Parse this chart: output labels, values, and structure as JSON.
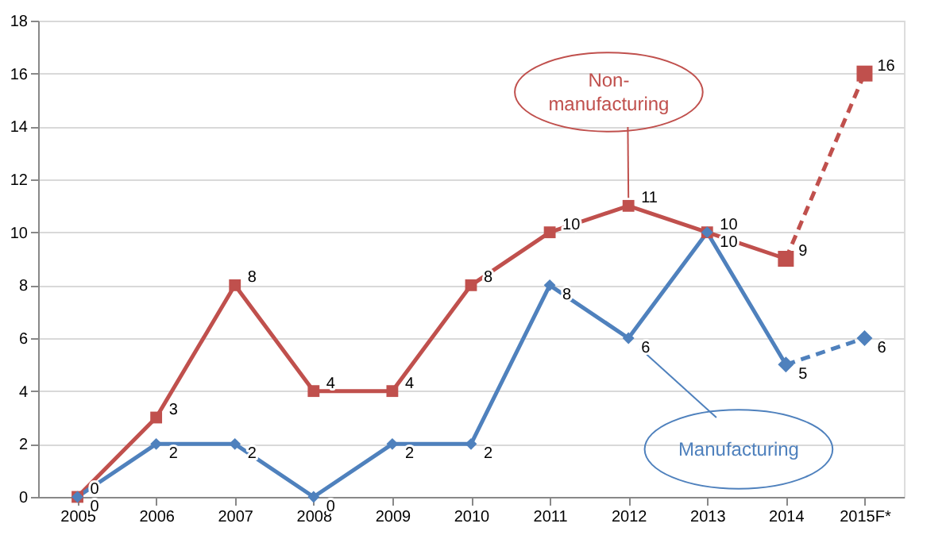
{
  "chart_data": {
    "type": "line",
    "categories": [
      "2005",
      "2006",
      "2007",
      "2008",
      "2009",
      "2010",
      "2011",
      "2012",
      "2013",
      "2014",
      "2015F*"
    ],
    "ylim": [
      0,
      18
    ],
    "yticks": [
      0,
      2,
      4,
      6,
      8,
      10,
      12,
      14,
      16,
      18
    ],
    "grid": "y",
    "series": [
      {
        "name": "Non-manufacturing",
        "color": "#c0504d",
        "marker": "square",
        "line_style": "solid",
        "values": [
          0,
          3,
          8,
          4,
          4,
          8,
          10,
          11,
          10,
          9,
          null
        ],
        "value_labels": [
          "0",
          "3",
          "8",
          "4",
          "4",
          "8",
          "10",
          "11",
          "10",
          "9",
          null
        ]
      },
      {
        "color": "#c0504d",
        "marker": "square",
        "line_style": "dashed",
        "values": [
          null,
          null,
          null,
          null,
          null,
          null,
          null,
          null,
          null,
          9,
          16
        ],
        "value_labels": [
          null,
          null,
          null,
          null,
          null,
          null,
          null,
          null,
          null,
          null,
          "16"
        ]
      },
      {
        "name": "Manufacturing",
        "color": "#4f81bd",
        "marker": "diamond",
        "line_style": "solid",
        "values": [
          0,
          2,
          2,
          0,
          2,
          2,
          8,
          6,
          10,
          5,
          null
        ],
        "value_labels": [
          "0",
          "2",
          "2",
          "0",
          "2",
          "2",
          "8",
          "6",
          "10",
          "5",
          null
        ]
      },
      {
        "color": "#4f81bd",
        "marker": "diamond",
        "line_style": "dashed",
        "values": [
          null,
          null,
          null,
          null,
          null,
          null,
          null,
          null,
          null,
          5,
          6
        ],
        "value_labels": [
          null,
          null,
          null,
          null,
          null,
          null,
          null,
          null,
          null,
          null,
          "6"
        ]
      }
    ]
  }
}
